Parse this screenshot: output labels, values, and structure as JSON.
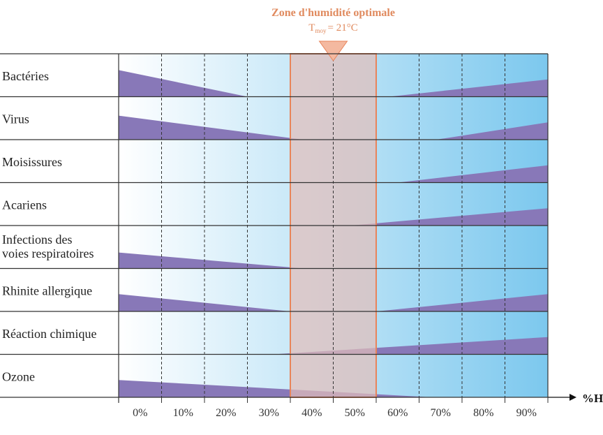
{
  "chart_data": {
    "type": "area",
    "title": "Zone d'humidité optimale",
    "subtitle_t": "T",
    "subtitle_sub": "moy",
    "subtitle_val": "= 21°C",
    "xlabel": "%H",
    "x_ticks": [
      "0%",
      "10%",
      "20%",
      "30%",
      "40%",
      "50%",
      "60%",
      "70%",
      "80%",
      "90%"
    ],
    "xlim": [
      0,
      100
    ],
    "optimal_zone": [
      40,
      60
    ],
    "optimal_marker_x": 50,
    "colors": {
      "risk": "#8878b8",
      "zone_fill": "#e3bdb9",
      "zone_stroke": "#e8845a",
      "bg_start": "#ffffff",
      "bg_end": "#7cc8ee",
      "grid": "#333333",
      "row_line": "#333333"
    },
    "rows": [
      {
        "label": "Bactéries",
        "left": {
          "x_end": 30,
          "level": 1.0
        },
        "right": {
          "x_start": 63,
          "level": 0.65
        }
      },
      {
        "label": "Virus",
        "left": {
          "x_end": 43,
          "level": 0.9
        },
        "right": {
          "x_start": 74,
          "level": 0.65
        }
      },
      {
        "label": "Moisissures",
        "left": null,
        "right": {
          "x_start": 65,
          "level": 0.65
        }
      },
      {
        "label": "Acariens",
        "left": null,
        "right": {
          "x_start": 54,
          "level": 0.65
        }
      },
      {
        "label": [
          "Infections des",
          "voies respiratoires"
        ],
        "left": {
          "x_end": 43,
          "level": 0.6
        },
        "right": null
      },
      {
        "label": "Rhinite allergique",
        "left": {
          "x_end": 40,
          "level": 0.65
        },
        "right": {
          "x_start": 60,
          "level": 0.65
        }
      },
      {
        "label": "Réaction chimique",
        "left": null,
        "right": {
          "x_start": 36,
          "level": 0.65
        }
      },
      {
        "label": "Ozone",
        "left": {
          "x_end": 73,
          "level": 0.65
        },
        "right": null
      }
    ]
  }
}
